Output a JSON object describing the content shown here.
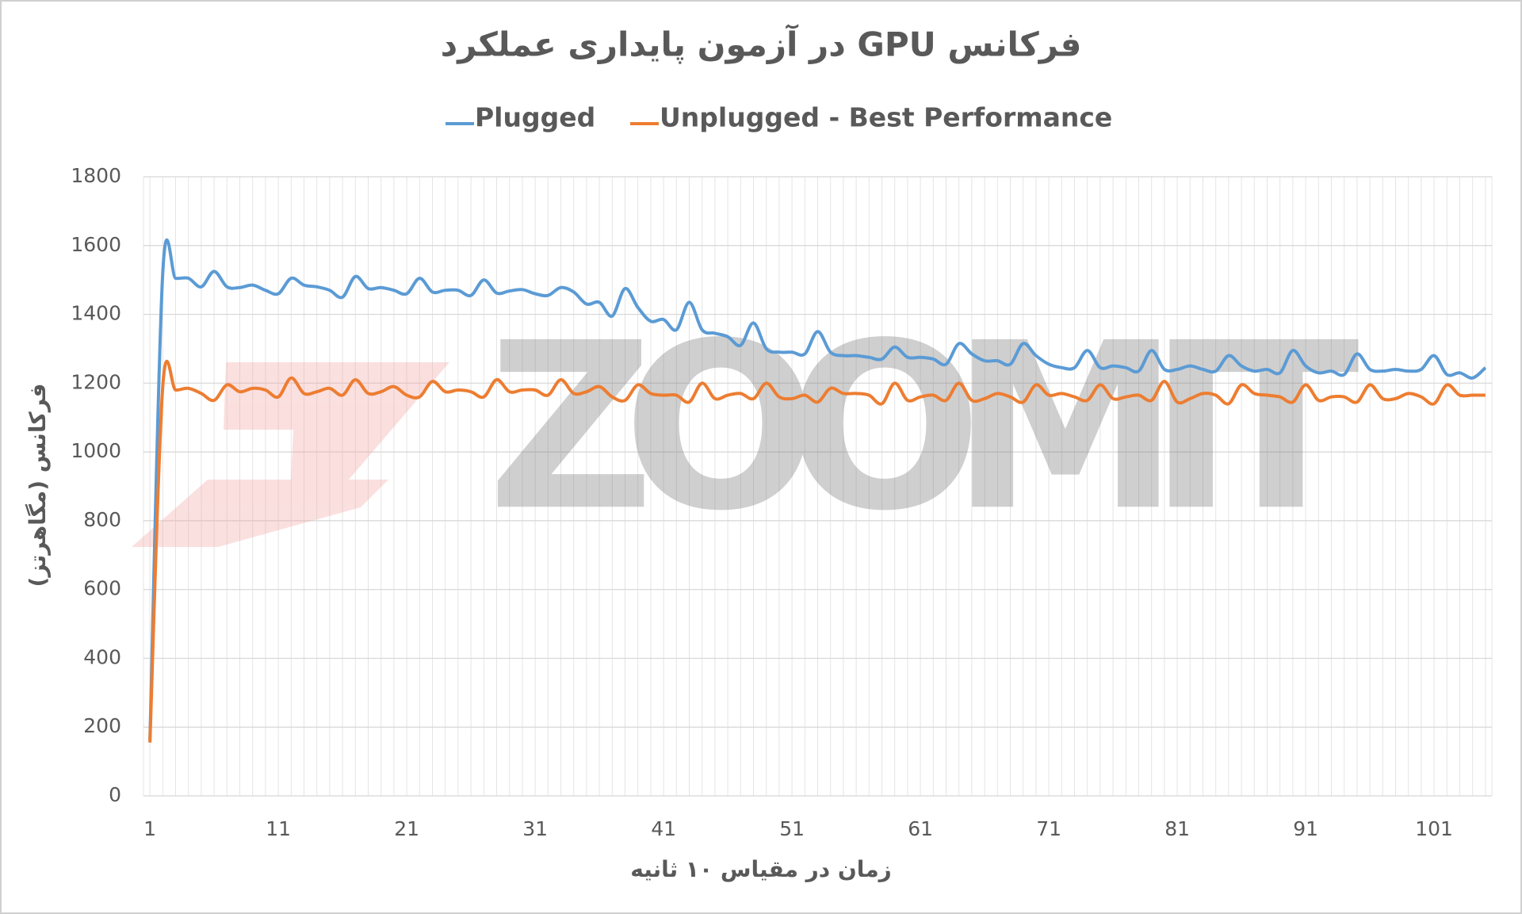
{
  "chart_data": {
    "type": "line",
    "title": "فرکانس GPU در آزمون پایداری عملکرد",
    "x_label": "زمان در مقیاس ۱۰ ثانیه",
    "y_label": "فرکانس (مگاهرتز)",
    "watermark": "ZOOMIT",
    "x": [
      1,
      2,
      3,
      4,
      5,
      6,
      7,
      8,
      9,
      10,
      11,
      12,
      13,
      14,
      15,
      16,
      17,
      18,
      19,
      20,
      21,
      22,
      23,
      24,
      25,
      26,
      27,
      28,
      29,
      30,
      31,
      32,
      33,
      34,
      35,
      36,
      37,
      38,
      39,
      40,
      41,
      42,
      43,
      44,
      45,
      46,
      47,
      48,
      49,
      50,
      51,
      52,
      53,
      54,
      55,
      56,
      57,
      58,
      59,
      60,
      61,
      62,
      63,
      64,
      65,
      66,
      67,
      68,
      69,
      70,
      71,
      72,
      73,
      74,
      75,
      76,
      77,
      78,
      79,
      80,
      81,
      82,
      83,
      84,
      85,
      86,
      87,
      88,
      89,
      90,
      91,
      92,
      93,
      94,
      95,
      96,
      97,
      98,
      99,
      100,
      101,
      102,
      103,
      104,
      105
    ],
    "xlim": [
      0.5,
      105.5
    ],
    "xticks": [
      1,
      11,
      21,
      31,
      41,
      51,
      61,
      71,
      81,
      91,
      101
    ],
    "ylim": [
      0,
      1800
    ],
    "yticks": [
      0,
      200,
      400,
      600,
      800,
      1000,
      1200,
      1400,
      1600,
      1800
    ],
    "grid": true,
    "legend": "top",
    "series": [
      {
        "name": "Plugged",
        "color": "#5b9bd5",
        "values": [
          160,
          1520,
          1505,
          1505,
          1480,
          1525,
          1480,
          1478,
          1485,
          1470,
          1460,
          1505,
          1485,
          1480,
          1470,
          1450,
          1510,
          1475,
          1478,
          1470,
          1460,
          1505,
          1465,
          1470,
          1470,
          1455,
          1500,
          1462,
          1468,
          1472,
          1460,
          1455,
          1478,
          1465,
          1430,
          1435,
          1395,
          1475,
          1420,
          1380,
          1385,
          1355,
          1435,
          1355,
          1345,
          1335,
          1310,
          1375,
          1300,
          1290,
          1290,
          1285,
          1350,
          1290,
          1280,
          1280,
          1275,
          1270,
          1305,
          1275,
          1275,
          1270,
          1255,
          1315,
          1285,
          1265,
          1265,
          1255,
          1315,
          1280,
          1255,
          1245,
          1245,
          1295,
          1245,
          1250,
          1245,
          1235,
          1295,
          1240,
          1240,
          1250,
          1240,
          1235,
          1280,
          1250,
          1235,
          1240,
          1230,
          1295,
          1250,
          1230,
          1235,
          1225,
          1285,
          1240,
          1235,
          1240,
          1235,
          1240,
          1280,
          1225,
          1230,
          1215,
          1245
        ]
      },
      {
        "name": "Unplugged - Best Performance",
        "color": "#ed7d31",
        "values": [
          155,
          1190,
          1180,
          1185,
          1170,
          1150,
          1195,
          1175,
          1185,
          1180,
          1160,
          1215,
          1170,
          1175,
          1185,
          1165,
          1210,
          1170,
          1175,
          1190,
          1165,
          1160,
          1205,
          1175,
          1180,
          1175,
          1160,
          1210,
          1175,
          1180,
          1180,
          1165,
          1210,
          1170,
          1175,
          1190,
          1160,
          1150,
          1195,
          1170,
          1165,
          1165,
          1145,
          1200,
          1155,
          1165,
          1170,
          1155,
          1200,
          1160,
          1155,
          1165,
          1145,
          1185,
          1170,
          1170,
          1165,
          1140,
          1200,
          1150,
          1160,
          1165,
          1150,
          1200,
          1150,
          1155,
          1170,
          1160,
          1145,
          1195,
          1165,
          1170,
          1160,
          1150,
          1195,
          1155,
          1160,
          1165,
          1150,
          1205,
          1145,
          1155,
          1170,
          1165,
          1140,
          1195,
          1170,
          1165,
          1160,
          1145,
          1195,
          1150,
          1160,
          1160,
          1145,
          1195,
          1155,
          1155,
          1170,
          1160,
          1140,
          1195,
          1165,
          1165,
          1165
        ]
      }
    ]
  }
}
